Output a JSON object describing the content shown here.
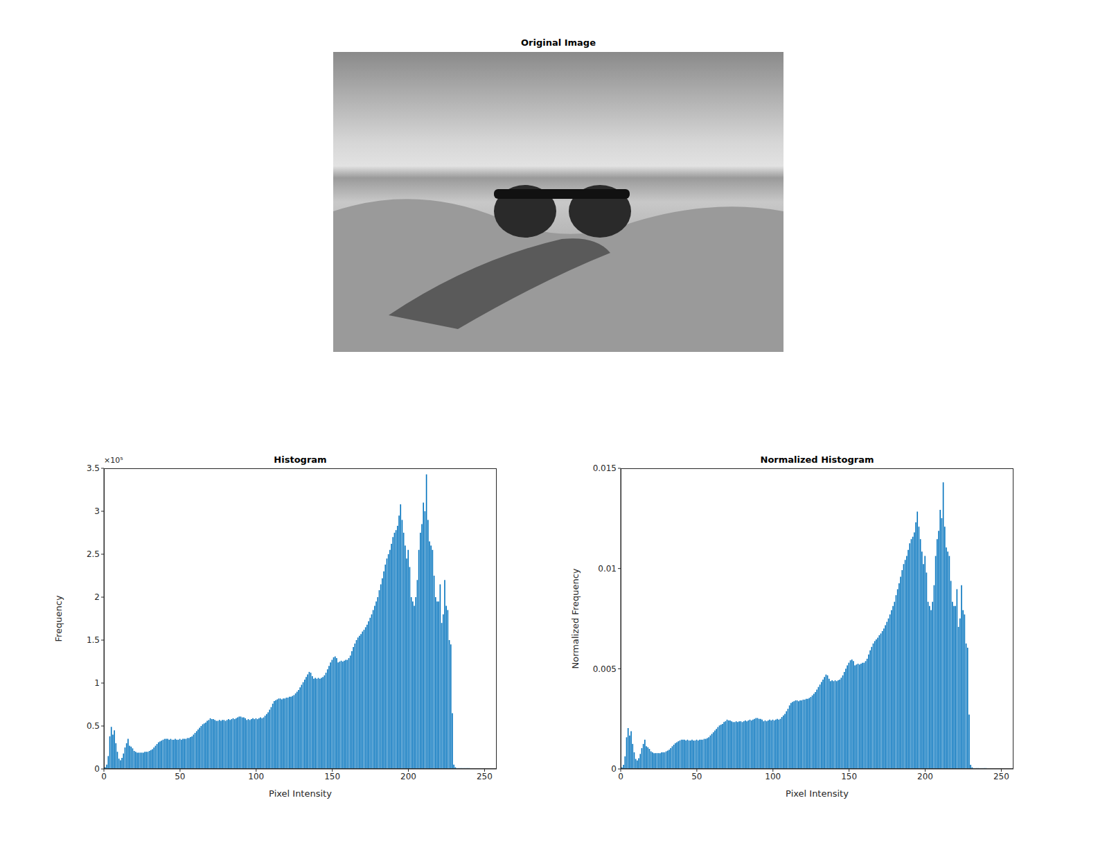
{
  "chart_data": [
    {
      "type": "image",
      "title": "Original Image"
    },
    {
      "type": "bar",
      "title": "Histogram",
      "x_label": "Pixel Intensity",
      "y_label": "Frequency",
      "annotation": "×10⁵",
      "color": "#0072bd",
      "xlim": [
        0,
        258
      ],
      "xticks": [
        0,
        50,
        100,
        150,
        200,
        250
      ],
      "ylim": [
        0,
        3.5
      ],
      "yticks": [
        0,
        0.5,
        1,
        1.5,
        2,
        2.5,
        3,
        3.5
      ],
      "x": [
        0,
        1,
        2,
        3,
        4,
        5,
        6,
        7,
        8,
        9,
        10,
        11,
        12,
        13,
        14,
        15,
        16,
        17,
        18,
        19,
        20,
        21,
        22,
        23,
        24,
        25,
        26,
        27,
        28,
        29,
        30,
        31,
        32,
        33,
        34,
        35,
        36,
        37,
        38,
        39,
        40,
        41,
        42,
        43,
        44,
        45,
        46,
        47,
        48,
        49,
        50,
        51,
        52,
        53,
        54,
        55,
        56,
        57,
        58,
        59,
        60,
        61,
        62,
        63,
        64,
        65,
        66,
        67,
        68,
        69,
        70,
        71,
        72,
        73,
        74,
        75,
        76,
        77,
        78,
        79,
        80,
        81,
        82,
        83,
        84,
        85,
        86,
        87,
        88,
        89,
        90,
        91,
        92,
        93,
        94,
        95,
        96,
        97,
        98,
        99,
        100,
        101,
        102,
        103,
        104,
        105,
        106,
        107,
        108,
        109,
        110,
        111,
        112,
        113,
        114,
        115,
        116,
        117,
        118,
        119,
        120,
        121,
        122,
        123,
        124,
        125,
        126,
        127,
        128,
        129,
        130,
        131,
        132,
        133,
        134,
        135,
        136,
        137,
        138,
        139,
        140,
        141,
        142,
        143,
        144,
        145,
        146,
        147,
        148,
        149,
        150,
        151,
        152,
        153,
        154,
        155,
        156,
        157,
        158,
        159,
        160,
        161,
        162,
        163,
        164,
        165,
        166,
        167,
        168,
        169,
        170,
        171,
        172,
        173,
        174,
        175,
        176,
        177,
        178,
        179,
        180,
        181,
        182,
        183,
        184,
        185,
        186,
        187,
        188,
        189,
        190,
        191,
        192,
        193,
        194,
        195,
        196,
        197,
        198,
        199,
        200,
        201,
        202,
        203,
        204,
        205,
        206,
        207,
        208,
        209,
        210,
        211,
        212,
        213,
        214,
        215,
        216,
        217,
        218,
        219,
        220,
        221,
        222,
        223,
        224,
        225,
        226,
        227,
        228,
        229,
        230,
        231,
        232,
        233,
        234,
        235,
        236,
        237,
        238,
        239,
        240,
        241,
        242,
        243,
        244,
        245,
        246,
        247,
        248,
        249,
        250,
        251,
        252,
        253,
        254,
        255
      ],
      "values": [
        0,
        0.02,
        0.05,
        0.15,
        0.38,
        0.49,
        0.4,
        0.45,
        0.3,
        0.2,
        0.12,
        0.1,
        0.13,
        0.18,
        0.25,
        0.3,
        0.35,
        0.27,
        0.26,
        0.24,
        0.21,
        0.2,
        0.19,
        0.19,
        0.19,
        0.19,
        0.19,
        0.2,
        0.2,
        0.2,
        0.21,
        0.22,
        0.23,
        0.25,
        0.27,
        0.29,
        0.31,
        0.32,
        0.33,
        0.34,
        0.35,
        0.35,
        0.35,
        0.34,
        0.35,
        0.34,
        0.34,
        0.35,
        0.34,
        0.34,
        0.35,
        0.34,
        0.35,
        0.35,
        0.35,
        0.36,
        0.36,
        0.37,
        0.38,
        0.4,
        0.42,
        0.44,
        0.46,
        0.48,
        0.5,
        0.52,
        0.53,
        0.54,
        0.56,
        0.57,
        0.59,
        0.58,
        0.58,
        0.57,
        0.56,
        0.56,
        0.57,
        0.56,
        0.57,
        0.57,
        0.56,
        0.57,
        0.58,
        0.57,
        0.58,
        0.59,
        0.58,
        0.59,
        0.6,
        0.61,
        0.61,
        0.6,
        0.6,
        0.59,
        0.57,
        0.58,
        0.57,
        0.58,
        0.59,
        0.58,
        0.59,
        0.58,
        0.59,
        0.6,
        0.59,
        0.6,
        0.62,
        0.64,
        0.66,
        0.69,
        0.72,
        0.76,
        0.79,
        0.8,
        0.81,
        0.82,
        0.82,
        0.81,
        0.82,
        0.82,
        0.83,
        0.83,
        0.84,
        0.84,
        0.85,
        0.86,
        0.88,
        0.9,
        0.92,
        0.95,
        0.98,
        1.01,
        1.04,
        1.07,
        1.1,
        1.13,
        1.12,
        1.08,
        1.05,
        1.06,
        1.05,
        1.06,
        1.05,
        1.06,
        1.07,
        1.09,
        1.12,
        1.16,
        1.2,
        1.24,
        1.27,
        1.3,
        1.31,
        1.29,
        1.24,
        1.25,
        1.26,
        1.25,
        1.26,
        1.27,
        1.27,
        1.29,
        1.32,
        1.37,
        1.42,
        1.46,
        1.5,
        1.53,
        1.55,
        1.57,
        1.6,
        1.62,
        1.65,
        1.68,
        1.72,
        1.76,
        1.8,
        1.85,
        1.9,
        1.95,
        2.0,
        2.08,
        2.15,
        2.22,
        2.3,
        2.38,
        2.45,
        2.5,
        2.55,
        2.62,
        2.7,
        2.75,
        2.78,
        2.83,
        2.95,
        3.08,
        2.9,
        2.75,
        2.6,
        2.45,
        2.55,
        2.35,
        2.0,
        1.95,
        1.9,
        2.0,
        2.2,
        2.55,
        2.75,
        2.85,
        3.1,
        3.0,
        3.43,
        2.9,
        2.65,
        2.6,
        2.55,
        2.25,
        2.0,
        1.95,
        1.95,
        2.15,
        1.7,
        1.8,
        2.2,
        1.9,
        1.85,
        1.5,
        1.45,
        0.65,
        0.05,
        0.02,
        0.01,
        0.01,
        0.01,
        0.01,
        0.01,
        0.01,
        0.01,
        0.01,
        0.01,
        0.005,
        0.005,
        0.005,
        0.005,
        0.005,
        0.005,
        0.005,
        0.005,
        0.005,
        0.005,
        0,
        0,
        0,
        0,
        0
      ]
    },
    {
      "type": "bar",
      "title": "Normalized Histogram",
      "x_label": "Pixel Intensity",
      "y_label": "Normalized Frequency",
      "color": "#0072bd",
      "xlim": [
        0,
        258
      ],
      "xticks": [
        0,
        50,
        100,
        150,
        200,
        250
      ],
      "ylim": [
        0,
        0.015
      ],
      "yticks": [
        0,
        0.005,
        0.01,
        0.015
      ],
      "x": [
        0,
        1,
        2,
        3,
        4,
        5,
        6,
        7,
        8,
        9,
        10,
        11,
        12,
        13,
        14,
        15,
        16,
        17,
        18,
        19,
        20,
        21,
        22,
        23,
        24,
        25,
        26,
        27,
        28,
        29,
        30,
        31,
        32,
        33,
        34,
        35,
        36,
        37,
        38,
        39,
        40,
        41,
        42,
        43,
        44,
        45,
        46,
        47,
        48,
        49,
        50,
        51,
        52,
        53,
        54,
        55,
        56,
        57,
        58,
        59,
        60,
        61,
        62,
        63,
        64,
        65,
        66,
        67,
        68,
        69,
        70,
        71,
        72,
        73,
        74,
        75,
        76,
        77,
        78,
        79,
        80,
        81,
        82,
        83,
        84,
        85,
        86,
        87,
        88,
        89,
        90,
        91,
        92,
        93,
        94,
        95,
        96,
        97,
        98,
        99,
        100,
        101,
        102,
        103,
        104,
        105,
        106,
        107,
        108,
        109,
        110,
        111,
        112,
        113,
        114,
        115,
        116,
        117,
        118,
        119,
        120,
        121,
        122,
        123,
        124,
        125,
        126,
        127,
        128,
        129,
        130,
        131,
        132,
        133,
        134,
        135,
        136,
        137,
        138,
        139,
        140,
        141,
        142,
        143,
        144,
        145,
        146,
        147,
        148,
        149,
        150,
        151,
        152,
        153,
        154,
        155,
        156,
        157,
        158,
        159,
        160,
        161,
        162,
        163,
        164,
        165,
        166,
        167,
        168,
        169,
        170,
        171,
        172,
        173,
        174,
        175,
        176,
        177,
        178,
        179,
        180,
        181,
        182,
        183,
        184,
        185,
        186,
        187,
        188,
        189,
        190,
        191,
        192,
        193,
        194,
        195,
        196,
        197,
        198,
        199,
        200,
        201,
        202,
        203,
        204,
        205,
        206,
        207,
        208,
        209,
        210,
        211,
        212,
        213,
        214,
        215,
        216,
        217,
        218,
        219,
        220,
        221,
        222,
        223,
        224,
        225,
        226,
        227,
        228,
        229,
        230,
        231,
        232,
        233,
        234,
        235,
        236,
        237,
        238,
        239,
        240,
        241,
        242,
        243,
        244,
        245,
        246,
        247,
        248,
        249,
        250,
        251,
        252,
        253,
        254,
        255
      ],
      "values": [
        0,
        8e-05,
        0.00021,
        0.00063,
        0.00158,
        0.00204,
        0.00167,
        0.00188,
        0.00125,
        0.00083,
        0.0005,
        0.00042,
        0.00054,
        0.00075,
        0.00104,
        0.00125,
        0.00146,
        0.00113,
        0.00108,
        0.001,
        0.00088,
        0.00083,
        0.00079,
        0.00079,
        0.00079,
        0.00079,
        0.00079,
        0.00083,
        0.00083,
        0.00083,
        0.00088,
        0.00092,
        0.00096,
        0.00104,
        0.00113,
        0.00121,
        0.00129,
        0.00133,
        0.00138,
        0.00142,
        0.00146,
        0.00146,
        0.00146,
        0.00142,
        0.00146,
        0.00142,
        0.00142,
        0.00146,
        0.00142,
        0.00142,
        0.00146,
        0.00142,
        0.00146,
        0.00146,
        0.00146,
        0.0015,
        0.0015,
        0.00154,
        0.00158,
        0.00167,
        0.00175,
        0.00183,
        0.00192,
        0.002,
        0.00209,
        0.00217,
        0.00221,
        0.00225,
        0.00234,
        0.00238,
        0.00246,
        0.00242,
        0.00242,
        0.00238,
        0.00234,
        0.00234,
        0.00238,
        0.00234,
        0.00238,
        0.00238,
        0.00234,
        0.00238,
        0.00242,
        0.00238,
        0.00242,
        0.00246,
        0.00242,
        0.00246,
        0.0025,
        0.00254,
        0.00254,
        0.0025,
        0.0025,
        0.00246,
        0.00238,
        0.00242,
        0.00238,
        0.00242,
        0.00246,
        0.00242,
        0.00246,
        0.00242,
        0.00246,
        0.0025,
        0.00246,
        0.0025,
        0.00259,
        0.00267,
        0.00275,
        0.00288,
        0.003,
        0.00317,
        0.00329,
        0.00334,
        0.00338,
        0.00342,
        0.00342,
        0.00338,
        0.00342,
        0.00342,
        0.00346,
        0.00346,
        0.0035,
        0.0035,
        0.00354,
        0.00359,
        0.00367,
        0.00375,
        0.00384,
        0.00396,
        0.00409,
        0.00421,
        0.00434,
        0.00446,
        0.00459,
        0.00471,
        0.00467,
        0.0045,
        0.00438,
        0.00442,
        0.00438,
        0.00442,
        0.00438,
        0.00442,
        0.00446,
        0.00455,
        0.00467,
        0.00484,
        0.005,
        0.00517,
        0.0053,
        0.00542,
        0.00546,
        0.00538,
        0.00517,
        0.00521,
        0.00525,
        0.00521,
        0.00525,
        0.0053,
        0.0053,
        0.00538,
        0.0055,
        0.00571,
        0.00592,
        0.00609,
        0.00626,
        0.00638,
        0.00646,
        0.00655,
        0.00667,
        0.00676,
        0.00688,
        0.00701,
        0.00717,
        0.00734,
        0.00751,
        0.00771,
        0.00792,
        0.00813,
        0.00834,
        0.00867,
        0.00897,
        0.00926,
        0.00959,
        0.00992,
        0.01022,
        0.01043,
        0.01063,
        0.01093,
        0.01126,
        0.01147,
        0.01159,
        0.0118,
        0.0123,
        0.01284,
        0.01209,
        0.01147,
        0.01084,
        0.01022,
        0.01063,
        0.0098,
        0.00834,
        0.00813,
        0.00792,
        0.00834,
        0.00917,
        0.01063,
        0.01147,
        0.01188,
        0.01293,
        0.01251,
        0.0143,
        0.01209,
        0.01105,
        0.01084,
        0.01063,
        0.00938,
        0.00834,
        0.00813,
        0.00813,
        0.00897,
        0.00709,
        0.00751,
        0.00917,
        0.00792,
        0.00771,
        0.00626,
        0.00605,
        0.00271,
        0.00021,
        8e-05,
        4e-05,
        4e-05,
        4e-05,
        4e-05,
        4e-05,
        4e-05,
        4e-05,
        4e-05,
        4e-05,
        2e-05,
        2e-05,
        2e-05,
        2e-05,
        2e-05,
        2e-05,
        2e-05,
        2e-05,
        2e-05,
        2e-05,
        0,
        0,
        0,
        0,
        0
      ]
    }
  ]
}
